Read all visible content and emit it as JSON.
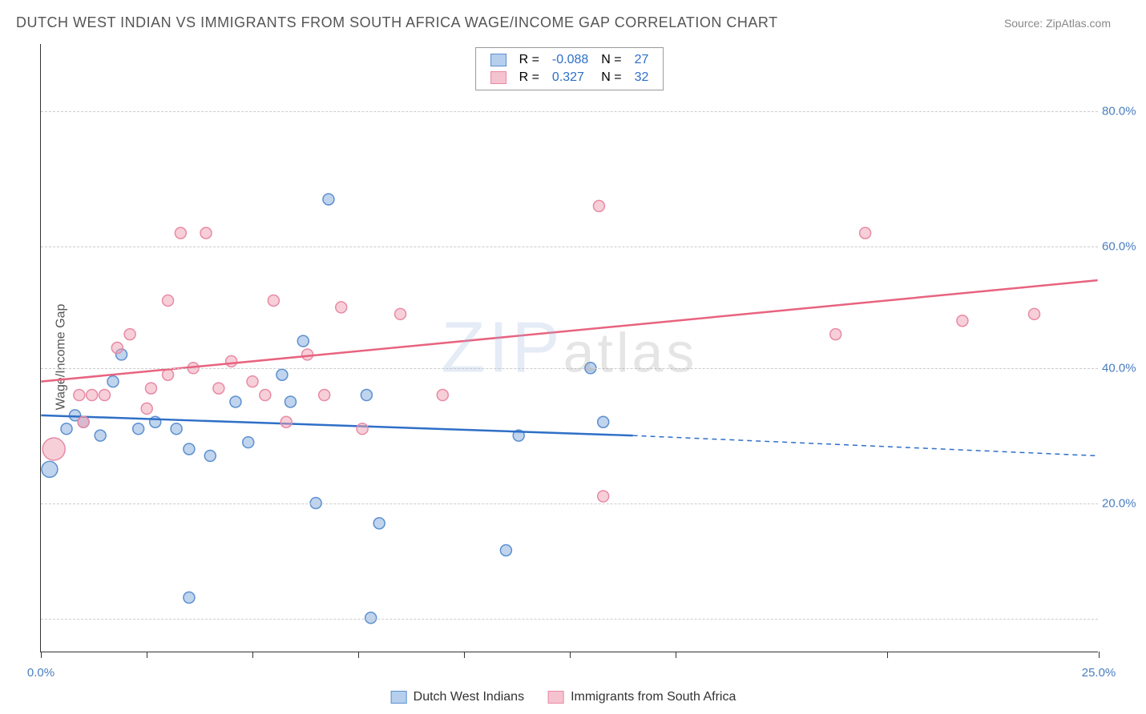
{
  "title": "DUTCH WEST INDIAN VS IMMIGRANTS FROM SOUTH AFRICA WAGE/INCOME GAP CORRELATION CHART",
  "source": "Source: ZipAtlas.com",
  "watermark_zip": "ZIP",
  "watermark_atlas": "atlas",
  "chart": {
    "type": "scatter",
    "xlim": [
      0,
      25
    ],
    "ylim": [
      0,
      90
    ],
    "x_ticks": [
      0,
      2.5,
      5,
      7.5,
      10,
      12.5,
      15,
      20,
      25
    ],
    "x_tick_labels": {
      "0": "0.0%",
      "25": "25.0%"
    },
    "y_gridlines": [
      5,
      22,
      42,
      60,
      80
    ],
    "y_tick_labels": {
      "22": "20.0%",
      "42": "40.0%",
      "60": "60.0%",
      "80": "80.0%"
    },
    "y_axis_label": "Wage/Income Gap",
    "axis_label_color": "#4a7dbf",
    "grid_color": "#cccccc",
    "background_color": "#ffffff",
    "series": [
      {
        "name": "Dutch West Indians",
        "fill_color": "rgba(130, 170, 220, 0.5)",
        "stroke_color": "#5b8fd0",
        "line_color": "#2e6fc7",
        "swatch_bg": "#b5cfec",
        "swatch_border": "#5b8fd0",
        "R": "-0.088",
        "N": "27",
        "trend": {
          "x1": 0,
          "y1": 35,
          "x2": 14,
          "y2": 32,
          "x2_dash": 25,
          "y2_dash": 29
        },
        "points": [
          {
            "x": 0.2,
            "y": 27,
            "r": 10
          },
          {
            "x": 0.6,
            "y": 33,
            "r": 7
          },
          {
            "x": 0.8,
            "y": 35,
            "r": 7
          },
          {
            "x": 1.0,
            "y": 34,
            "r": 7
          },
          {
            "x": 1.4,
            "y": 32,
            "r": 7
          },
          {
            "x": 1.7,
            "y": 40,
            "r": 7
          },
          {
            "x": 1.9,
            "y": 44,
            "r": 7
          },
          {
            "x": 2.3,
            "y": 33,
            "r": 7
          },
          {
            "x": 2.7,
            "y": 34,
            "r": 7
          },
          {
            "x": 3.2,
            "y": 33,
            "r": 7
          },
          {
            "x": 3.5,
            "y": 30,
            "r": 7
          },
          {
            "x": 3.5,
            "y": 8,
            "r": 7
          },
          {
            "x": 4.0,
            "y": 29,
            "r": 7
          },
          {
            "x": 4.6,
            "y": 37,
            "r": 7
          },
          {
            "x": 4.9,
            "y": 31,
            "r": 7
          },
          {
            "x": 5.7,
            "y": 41,
            "r": 7
          },
          {
            "x": 5.9,
            "y": 37,
            "r": 7
          },
          {
            "x": 6.2,
            "y": 46,
            "r": 7
          },
          {
            "x": 6.5,
            "y": 22,
            "r": 7
          },
          {
            "x": 6.8,
            "y": 67,
            "r": 7
          },
          {
            "x": 7.7,
            "y": 38,
            "r": 7
          },
          {
            "x": 7.8,
            "y": 5,
            "r": 7
          },
          {
            "x": 8.0,
            "y": 19,
            "r": 7
          },
          {
            "x": 11.0,
            "y": 15,
            "r": 7
          },
          {
            "x": 11.3,
            "y": 32,
            "r": 7
          },
          {
            "x": 13.0,
            "y": 42,
            "r": 7
          },
          {
            "x": 13.3,
            "y": 34,
            "r": 7
          }
        ]
      },
      {
        "name": "Immigrants from South Africa",
        "fill_color": "rgba(240, 160, 180, 0.5)",
        "stroke_color": "#e88aa5",
        "line_color": "#e8637f",
        "swatch_bg": "#f5c3d0",
        "swatch_border": "#e88aa5",
        "R": "0.327",
        "N": "32",
        "trend": {
          "x1": 0,
          "y1": 40,
          "x2": 25,
          "y2": 55,
          "x2_dash": 25,
          "y2_dash": 55
        },
        "points": [
          {
            "x": 0.3,
            "y": 30,
            "r": 14
          },
          {
            "x": 0.9,
            "y": 38,
            "r": 7
          },
          {
            "x": 1.0,
            "y": 34,
            "r": 7
          },
          {
            "x": 1.2,
            "y": 38,
            "r": 7
          },
          {
            "x": 1.5,
            "y": 38,
            "r": 7
          },
          {
            "x": 1.8,
            "y": 45,
            "r": 7
          },
          {
            "x": 2.1,
            "y": 47,
            "r": 7
          },
          {
            "x": 2.5,
            "y": 36,
            "r": 7
          },
          {
            "x": 2.6,
            "y": 39,
            "r": 7
          },
          {
            "x": 3.0,
            "y": 52,
            "r": 7
          },
          {
            "x": 3.0,
            "y": 41,
            "r": 7
          },
          {
            "x": 3.3,
            "y": 62,
            "r": 7
          },
          {
            "x": 3.6,
            "y": 42,
            "r": 7
          },
          {
            "x": 3.9,
            "y": 62,
            "r": 7
          },
          {
            "x": 4.2,
            "y": 39,
            "r": 7
          },
          {
            "x": 4.5,
            "y": 43,
            "r": 7
          },
          {
            "x": 5.0,
            "y": 40,
            "r": 7
          },
          {
            "x": 5.3,
            "y": 38,
            "r": 7
          },
          {
            "x": 5.5,
            "y": 52,
            "r": 7
          },
          {
            "x": 5.8,
            "y": 34,
            "r": 7
          },
          {
            "x": 6.3,
            "y": 44,
            "r": 7
          },
          {
            "x": 6.7,
            "y": 38,
            "r": 7
          },
          {
            "x": 7.1,
            "y": 51,
            "r": 7
          },
          {
            "x": 7.6,
            "y": 33,
            "r": 7
          },
          {
            "x": 8.5,
            "y": 50,
            "r": 7
          },
          {
            "x": 9.5,
            "y": 38,
            "r": 7
          },
          {
            "x": 13.2,
            "y": 66,
            "r": 7
          },
          {
            "x": 13.3,
            "y": 23,
            "r": 7
          },
          {
            "x": 18.8,
            "y": 47,
            "r": 7
          },
          {
            "x": 19.5,
            "y": 62,
            "r": 7
          },
          {
            "x": 21.8,
            "y": 49,
            "r": 7
          },
          {
            "x": 23.5,
            "y": 50,
            "r": 7
          }
        ]
      }
    ],
    "legend_label_R": "R = ",
    "legend_label_N": "N = "
  }
}
